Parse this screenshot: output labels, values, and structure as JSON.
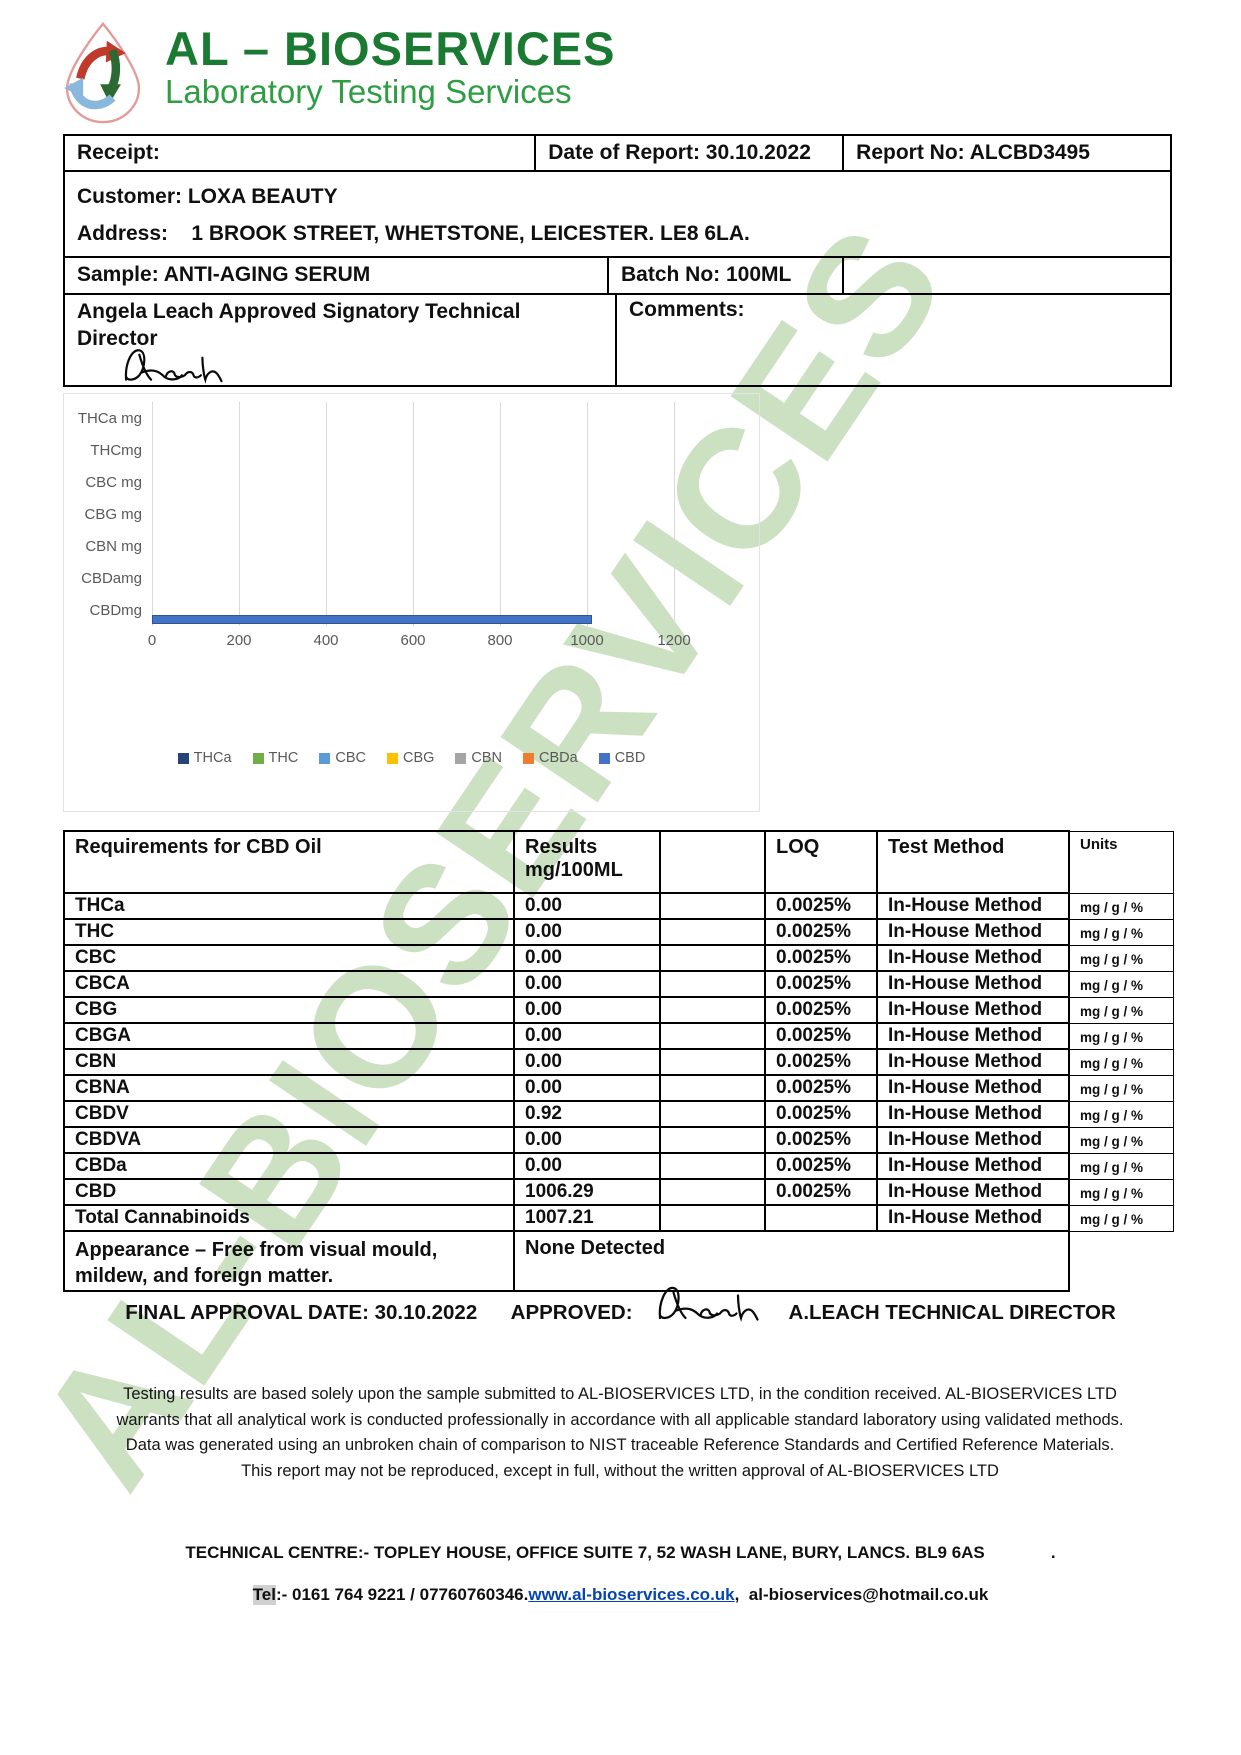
{
  "brand": {
    "title": "AL – BIOSERVICES",
    "subtitle": "Laboratory Testing Services",
    "title_color": "#1b7a31",
    "subtitle_color": "#2f9d43"
  },
  "watermark_text": "AL-BIOSERVICES",
  "info": {
    "receipt_label": "Receipt:",
    "date_of_report": "Date of Report: 30.10.2022",
    "report_no": "Report No: ALCBD3495",
    "customer": "Customer: LOXA BEAUTY",
    "address": "Address:    1 BROOK STREET, WHETSTONE, LEICESTER. LE8 6LA.",
    "sample": "Sample: ANTI-AGING SERUM",
    "batch_no": "Batch No: 100ML",
    "signatory": "Angela Leach Approved Signatory Technical Director",
    "comments_label": "Comments:"
  },
  "chart_data": {
    "type": "bar",
    "orientation": "horizontal",
    "categories": [
      "THCa mg",
      "THCmg",
      "CBC mg",
      "CBG mg",
      "CBN mg",
      "CBDamg",
      "CBDmg"
    ],
    "series": [
      {
        "name": "THCa",
        "color": "#264478",
        "value": 0
      },
      {
        "name": "THC",
        "color": "#70AD47",
        "value": 0
      },
      {
        "name": "CBC",
        "color": "#5B9BD5",
        "value": 0
      },
      {
        "name": "CBG",
        "color": "#FFC000",
        "value": 0
      },
      {
        "name": "CBN",
        "color": "#A5A5A5",
        "value": 0
      },
      {
        "name": "CBDa",
        "color": "#ED7D31",
        "value": 0
      },
      {
        "name": "CBD",
        "color": "#4472C4",
        "value": 1006.29
      }
    ],
    "bar_category": "CBDmg",
    "x_ticks": [
      0,
      200,
      400,
      600,
      800,
      1000,
      1200
    ],
    "xlim": [
      0,
      1200
    ],
    "grid": true,
    "legend_position": "bottom"
  },
  "results_table": {
    "headers": {
      "col1": "Requirements for CBD Oil",
      "col2_line1": "Results",
      "col2_line2": "mg/100ML",
      "col3": "",
      "col4": "LOQ",
      "col5": "Test Method",
      "col6": "Units"
    },
    "rows": [
      {
        "analyte": "THCa",
        "result": "0.00",
        "loq": "0.0025%",
        "method": "In-House Method",
        "units": "mg / g / %"
      },
      {
        "analyte": "THC",
        "result": "0.00",
        "loq": "0.0025%",
        "method": "In-House Method",
        "units": "mg / g / %"
      },
      {
        "analyte": "CBC",
        "result": "0.00",
        "loq": "0.0025%",
        "method": "In-House Method",
        "units": "mg / g / %"
      },
      {
        "analyte": "CBCA",
        "result": "0.00",
        "loq": "0.0025%",
        "method": "In-House Method",
        "units": "mg / g / %"
      },
      {
        "analyte": "CBG",
        "result": "0.00",
        "loq": "0.0025%",
        "method": "In-House Method",
        "units": "mg / g / %"
      },
      {
        "analyte": "CBGA",
        "result": "0.00",
        "loq": "0.0025%",
        "method": "In-House Method",
        "units": "mg / g / %"
      },
      {
        "analyte": "CBN",
        "result": "0.00",
        "loq": "0.0025%",
        "method": "In-House Method",
        "units": "mg / g / %"
      },
      {
        "analyte": "CBNA",
        "result": "0.00",
        "loq": "0.0025%",
        "method": "In-House Method",
        "units": "mg / g / %"
      },
      {
        "analyte": "CBDV",
        "result": "0.92",
        "loq": "0.0025%",
        "method": "In-House Method",
        "units": "mg / g / %"
      },
      {
        "analyte": "CBDVA",
        "result": "0.00",
        "loq": "0.0025%",
        "method": "In-House Method",
        "units": "mg / g / %"
      },
      {
        "analyte": "CBDa",
        "result": "0.00",
        "loq": "0.0025%",
        "method": "In-House Method",
        "units": "mg / g / %"
      },
      {
        "analyte": "CBD",
        "result": "1006.29",
        "loq": "0.0025%",
        "method": "In-House Method",
        "units": "mg / g / %"
      },
      {
        "analyte": "Total Cannabinoids",
        "result": "1007.21",
        "loq": "",
        "method": "In-House Method",
        "units": "mg / g / %"
      }
    ],
    "appearance_label": "Appearance – Free from visual mould, mildew, and foreign matter.",
    "appearance_result": "None Detected"
  },
  "approval": {
    "line": "FINAL APPROVAL DATE: 30.10.2022      APPROVED:",
    "approver": "A.LEACH TECHNICAL DIRECTOR"
  },
  "disclaimer": "Testing results are based solely upon the sample submitted to AL-BIOSERVICES LTD, in the condition received. AL-BIOSERVICES LTD warrants that all analytical work is conducted professionally in accordance with all applicable standard laboratory using validated methods. Data was generated using an unbroken chain of comparison to NIST traceable Reference Standards and Certified Reference Materials. This report may not be reproduced, except in full, without the written approval of AL-BIOSERVICES LTD",
  "footer": {
    "technical_centre": "TECHNICAL CENTRE:- TOPLEY HOUSE, OFFICE SUITE 7, 52 WASH LANE, BURY, LANCS. BL9 6AS              .",
    "tel_label": "Tel",
    "tel_rest": ":- 0161 764 9221 / 07760760346.",
    "website": "www.al-bioservices.co.uk",
    "after_link": ",  al-bioservices@hotmail.co.uk",
    "link_color": "#0645ad",
    "highlight_color": "#d0d0d0"
  }
}
